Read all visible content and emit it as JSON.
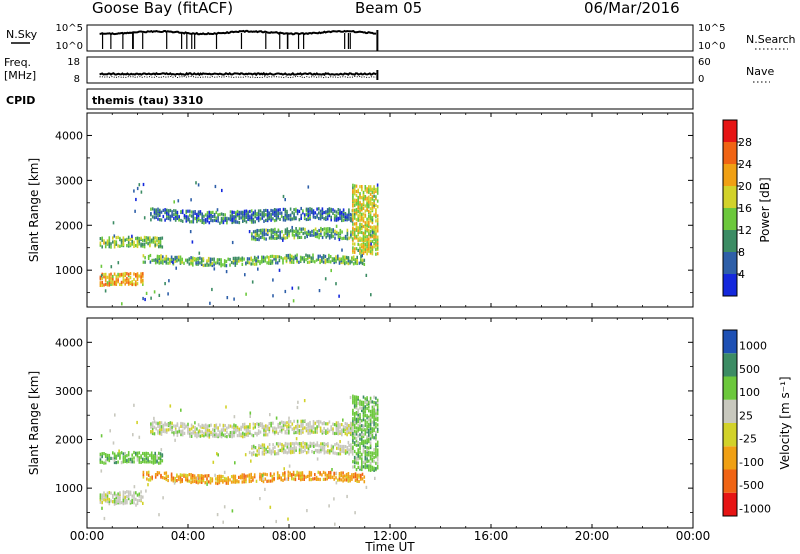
{
  "header": {
    "station": "Goose Bay (fitACF)",
    "beam": "Beam 05",
    "date": "06/Mar/2016"
  },
  "nsky_panel": {
    "label": "N.Sky",
    "right_label": "N.Search",
    "left_ticks": [
      "10^5",
      "10^0"
    ],
    "right_ticks": [
      "10^5",
      "10^0"
    ]
  },
  "freq_panel": {
    "label_line1": "Freq.",
    "label_line2": "[MHz]",
    "right_label": "Nave",
    "left_ticks": [
      "18",
      "8"
    ],
    "right_ticks": [
      "60",
      "0"
    ]
  },
  "cpid_panel": {
    "label": "CPID",
    "value": "themis (tau) 3310"
  },
  "x_axis": {
    "label": "Time UT",
    "ticks": [
      "00:00",
      "04:00",
      "08:00",
      "12:00",
      "16:00",
      "20:00",
      "00:00"
    ]
  },
  "colors": {
    "power": [
      "#1428dc",
      "#2e5fa8",
      "#3c8c64",
      "#6cc83c",
      "#d2d22a",
      "#f0a014",
      "#f06414",
      "#e61414"
    ],
    "velocity": [
      "#e61414",
      "#f06414",
      "#f0a014",
      "#d2d22a",
      "#c8c8be",
      "#6cc83c",
      "#3c8c64",
      "#1e50b4"
    ]
  },
  "chart_data": [
    {
      "type": "heatmap",
      "title": "",
      "xlabel": "Time UT",
      "ylabel": "Slant Range [km]",
      "x_range_hours": [
        0,
        24
      ],
      "ylim": [
        180,
        4500
      ],
      "y_ticks": [
        "1000",
        "2000",
        "3000",
        "4000"
      ],
      "colorbar": {
        "label": "Power [dB]",
        "ticks": [
          "4",
          "8",
          "12",
          "16",
          "20",
          "24",
          "28"
        ],
        "range": [
          0,
          32
        ]
      },
      "data_coverage_hours": [
        0.5,
        11.5
      ],
      "echo_bands": [
        {
          "start_h": 0.5,
          "end_h": 2.2,
          "range_km": [
            650,
            900
          ],
          "value_db": 22
        },
        {
          "start_h": 2.2,
          "end_h": 11.0,
          "range_km": [
            1150,
            1300
          ],
          "value_db": 12
        },
        {
          "start_h": 0.5,
          "end_h": 3.0,
          "range_km": [
            1500,
            1700
          ],
          "value_db": 14
        },
        {
          "start_h": 2.5,
          "end_h": 10.5,
          "range_km": [
            2100,
            2350
          ],
          "value_db": 6
        },
        {
          "start_h": 6.5,
          "end_h": 10.5,
          "range_km": [
            1700,
            1900
          ],
          "value_db": 10
        },
        {
          "start_h": 10.5,
          "end_h": 11.5,
          "range_km": [
            1400,
            2900
          ],
          "value_db": 18
        }
      ]
    },
    {
      "type": "heatmap",
      "title": "",
      "xlabel": "Time UT",
      "ylabel": "Slant Range [km]",
      "x_range_hours": [
        0,
        24
      ],
      "ylim": [
        180,
        4500
      ],
      "y_ticks": [
        "1000",
        "2000",
        "3000",
        "4000"
      ],
      "colorbar": {
        "label": "Velocity [m s⁻¹]",
        "ticks": [
          "1000",
          "500",
          "100",
          "25",
          "-25",
          "-100",
          "-500",
          "-1000"
        ]
      },
      "data_coverage_hours": [
        0.5,
        11.5
      ],
      "echo_bands": [
        {
          "start_h": 0.5,
          "end_h": 2.2,
          "range_km": [
            650,
            900
          ],
          "value_ms": 0
        },
        {
          "start_h": 2.2,
          "end_h": 11.0,
          "range_km": [
            1150,
            1300
          ],
          "value_ms": -100
        },
        {
          "start_h": 0.5,
          "end_h": 3.0,
          "range_km": [
            1500,
            1700
          ],
          "value_ms": 100
        },
        {
          "start_h": 2.5,
          "end_h": 10.5,
          "range_km": [
            2100,
            2350
          ],
          "value_ms": 0
        },
        {
          "start_h": 6.5,
          "end_h": 10.5,
          "range_km": [
            1700,
            1900
          ],
          "value_ms": 0
        },
        {
          "start_h": 10.5,
          "end_h": 11.5,
          "range_km": [
            1400,
            2900
          ],
          "value_ms": 100
        }
      ]
    }
  ]
}
